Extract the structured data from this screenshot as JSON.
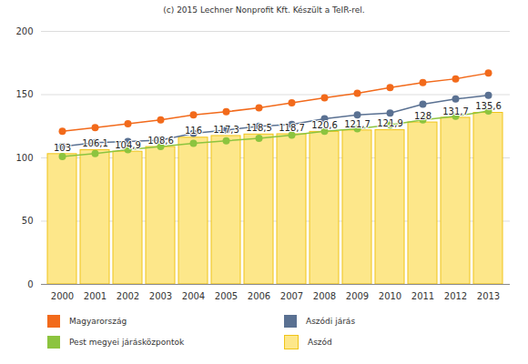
{
  "chart_data": {
    "type": "bar",
    "title": "(c) 2015 Lechner Nonprofit Kft. Készült a TeIR-rel.",
    "categories": [
      "2000",
      "2001",
      "2002",
      "2003",
      "2004",
      "2005",
      "2006",
      "2007",
      "2008",
      "2009",
      "2010",
      "2011",
      "2012",
      "2013"
    ],
    "ylim": [
      0,
      200
    ],
    "yticks": [
      0,
      50,
      100,
      150,
      200
    ],
    "grid": true,
    "data_labels": true,
    "legend": "bottom",
    "series": [
      {
        "name": "Magyarország",
        "type": "line",
        "marker": "circle",
        "color": "#f26a1b",
        "values": [
          121,
          124,
          127,
          130,
          134,
          136.5,
          139.5,
          143.5,
          147.5,
          151,
          155.5,
          159.5,
          162.5,
          167
        ]
      },
      {
        "name": "Aszódi járás",
        "type": "line",
        "marker": "circle",
        "color": "#5a7192",
        "values": [
          109,
          112,
          113,
          114,
          119.5,
          122,
          125,
          126.5,
          131,
          134,
          135.5,
          142.5,
          146.5,
          149.5
        ]
      },
      {
        "name": "Pest megyei járásközpontok",
        "type": "line",
        "marker": "circle",
        "color": "#8cc43f",
        "values": [
          101,
          103.5,
          106.5,
          109,
          111.5,
          113.5,
          115.5,
          118,
          121,
          123,
          126,
          130,
          133,
          137
        ]
      },
      {
        "name": "Aszód",
        "type": "bar",
        "color": "#fde78a",
        "values": [
          103,
          106.1,
          104.9,
          108.6,
          116,
          117.3,
          118.5,
          118.7,
          120.6,
          121.7,
          121.9,
          128,
          131.7,
          135.6
        ],
        "value_labels": [
          "103",
          "106,1",
          "104,9",
          "108,6",
          "116",
          "117,3",
          "118,5",
          "118,7",
          "120,6",
          "121,7",
          "121,9",
          "128",
          "131,7",
          "135,6"
        ]
      }
    ]
  }
}
